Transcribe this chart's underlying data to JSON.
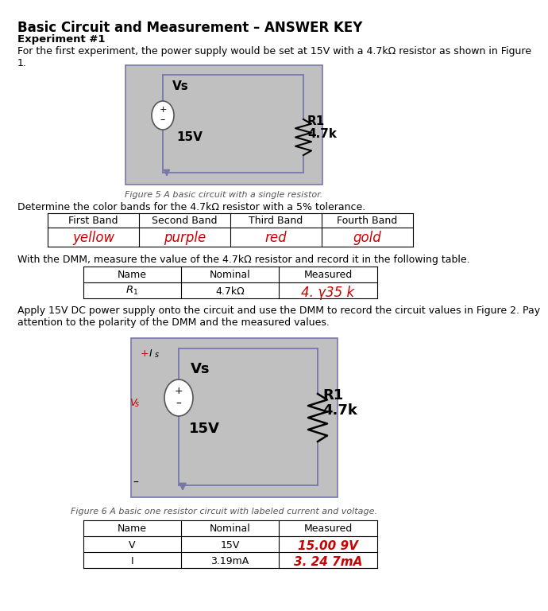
{
  "title": "Basic Circuit and Measurement – ANSWER KEY",
  "exp_label": "Experiment #1",
  "exp_text": "For the first experiment, the power supply would be set at 15V with a 4.7kΩ resistor as shown in Figure\n1.",
  "color_band_header": [
    "First Band",
    "Second Band",
    "Third Band",
    "Fourth Band"
  ],
  "color_band_answers": [
    "yellow",
    "purple",
    "red",
    "gold"
  ],
  "dmm_text": "With the DMM, measure the value of the 4.7kΩ resistor and record it in the following table.",
  "table1_headers": [
    "Name",
    "Nominal",
    "Measured"
  ],
  "table1_row_measured": "4. γ35 k",
  "apply_text": "Apply 15V DC power supply onto the circuit and use the DMM to record the circuit values in Figure 2. Pay\nattention to the polarity of the DMM and the measured values.",
  "fig6_caption": "Figure 6 A basic one resistor circuit with labeled current and voltage.",
  "fig5_caption": "Figure 5 A basic circuit with a single resistor.",
  "table2_headers": [
    "Name",
    "Nominal",
    "Measured"
  ],
  "table2_rows": [
    [
      "V",
      "15V",
      "15.00 9V"
    ],
    [
      "I",
      "3.19mA",
      "3. 24 7mA"
    ]
  ],
  "red_color": "#cc0000",
  "bg_circuit": "#c0c0c0",
  "circuit_border": "#7777aa",
  "determine_text": "Determine the color bands for the 4.7kΩ resistor with a 5% tolerance."
}
